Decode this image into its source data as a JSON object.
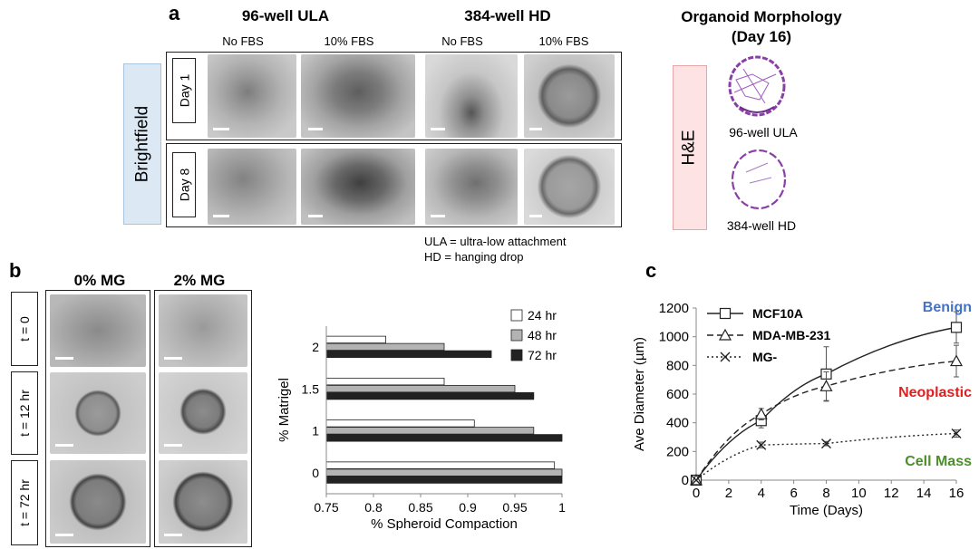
{
  "panel_a": {
    "letter": "a",
    "header_ula": "96-well ULA",
    "header_hd": "384-well HD",
    "col_labels": [
      "No FBS",
      "10% FBS",
      "No FBS",
      "10% FBS"
    ],
    "row_labels": [
      "Day 1",
      "Day 8"
    ],
    "side_label": "Brightfield",
    "morph_title_line1": "Organoid Morphology",
    "morph_title_line2": "(Day 16)",
    "he_label": "H&E",
    "he_caption_1": "96-well ULA",
    "he_caption_2": "384-well HD",
    "legend_line1": "ULA = ultra-low attachment",
    "legend_line2": "HD = hanging drop",
    "colors": {
      "brightfield_box": "#dce9f5",
      "he_box": "#fde3e3",
      "he_stain": "#8a3fa8"
    }
  },
  "panel_b": {
    "letter": "b",
    "col_labels": [
      "0% MG",
      "2% MG"
    ],
    "row_labels": [
      "t = 0",
      "t = 12 hr",
      "t = 72 hr"
    ]
  },
  "panel_c": {
    "letter": "c"
  },
  "chart_data": [
    {
      "type": "bar",
      "orientation": "horizontal",
      "categories": [
        "2",
        "1.5",
        "1",
        "0"
      ],
      "series": [
        {
          "name": "24 hr",
          "values": [
            0.813,
            0.875,
            0.907,
            0.992
          ],
          "color": "#ffffff"
        },
        {
          "name": "48 hr",
          "values": [
            0.875,
            0.95,
            0.97,
            1.0
          ],
          "color": "#b3b3b3"
        },
        {
          "name": "72 hr",
          "values": [
            0.925,
            0.97,
            1.0,
            1.0
          ],
          "color": "#222222"
        }
      ],
      "xlabel": "% Spheroid Compaction",
      "ylabel": "% Matrigel",
      "xlim": [
        0.75,
        1.0
      ],
      "xticks": [
        "0.75",
        "0.8",
        "0.85",
        "0.9",
        "0.95",
        "1"
      ],
      "legend": "top-right"
    },
    {
      "type": "line",
      "x": [
        0,
        4,
        8,
        16
      ],
      "xticks": [
        "0",
        "2",
        "4",
        "6",
        "8",
        "10",
        "12",
        "14",
        "16"
      ],
      "yticks": [
        "0",
        "200",
        "400",
        "600",
        "800",
        "1000",
        "1200"
      ],
      "xlim": [
        0,
        16
      ],
      "ylim": [
        0,
        1200
      ],
      "xlabel": "Time (Days)",
      "ylabel": "Ave Diameter (µm)",
      "series": [
        {
          "name": "MCF10A",
          "values": [
            0,
            415,
            740,
            1065
          ],
          "errors": [
            0,
            50,
            190,
            110
          ],
          "marker": "square",
          "line": "solid"
        },
        {
          "name": "MDA-MB-231",
          "values": [
            0,
            460,
            655,
            830
          ],
          "errors": [
            0,
            40,
            100,
            110
          ],
          "marker": "triangle",
          "line": "dashed"
        },
        {
          "name": "MG-",
          "values": [
            0,
            245,
            255,
            325
          ],
          "errors": [
            0,
            20,
            15,
            25
          ],
          "marker": "x",
          "line": "dotted"
        }
      ],
      "annotations": [
        {
          "text": "Benign",
          "color": "#4472c4"
        },
        {
          "text": "Neoplastic",
          "color": "#e02020"
        },
        {
          "text": "Cell Mass",
          "color": "#4a8f2a"
        }
      ],
      "legend": "top-left"
    }
  ]
}
